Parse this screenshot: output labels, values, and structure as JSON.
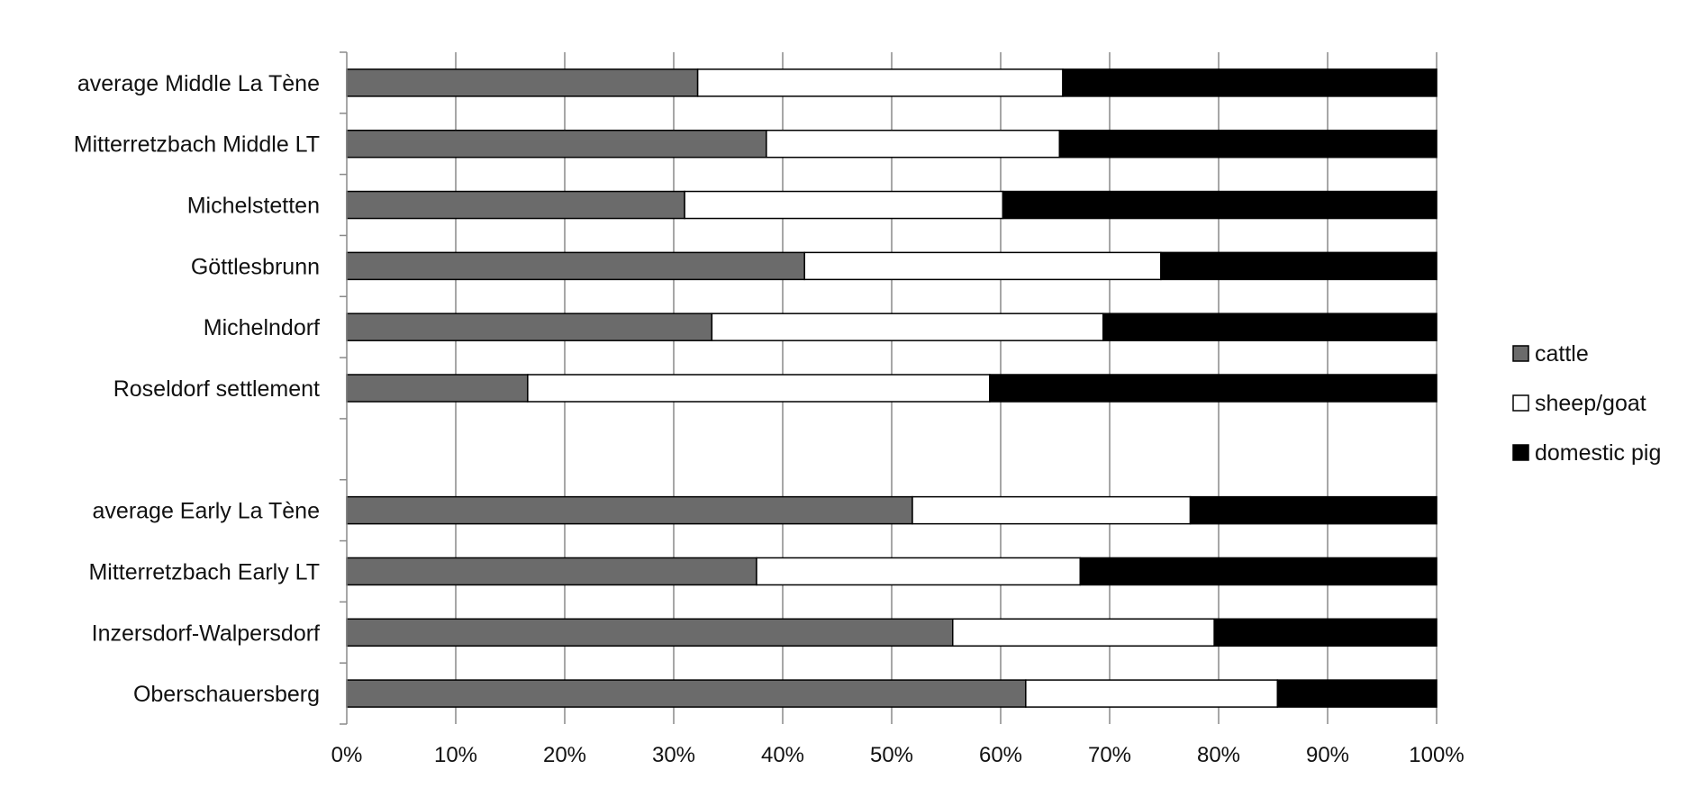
{
  "chart_data": {
    "type": "bar",
    "orientation": "horizontal",
    "stacked": "percent",
    "xlim": [
      0,
      100
    ],
    "x_ticks": [
      "0%",
      "10%",
      "20%",
      "30%",
      "40%",
      "50%",
      "60%",
      "70%",
      "80%",
      "90%",
      "100%"
    ],
    "grid": "vertical",
    "legend_position": "right",
    "categories": [
      "average Middle La Tène",
      "Mitterretzbach Middle LT",
      "Michelstetten",
      "Göttlesbrunn",
      "Michelndorf",
      "Roseldorf settlement",
      "",
      "average Early La Tène",
      "Mitterretzbach Early LT",
      "Inzersdorf-Walpersdorf",
      "Oberschauersberg"
    ],
    "series": [
      {
        "name": "cattle",
        "color": "#6b6b6b",
        "values": [
          32.2,
          38.5,
          31.0,
          42.0,
          33.5,
          16.6,
          null,
          51.9,
          37.6,
          55.6,
          62.3
        ]
      },
      {
        "name": "sheep/goat",
        "color": "#ffffff",
        "values": [
          33.5,
          26.9,
          29.2,
          32.7,
          35.9,
          42.4,
          null,
          25.5,
          29.7,
          24.0,
          23.1
        ]
      },
      {
        "name": "domestic pig",
        "color": "#000000",
        "values": [
          34.3,
          34.6,
          39.8,
          25.3,
          30.6,
          41.0,
          null,
          22.6,
          32.7,
          20.4,
          14.6
        ]
      }
    ]
  }
}
